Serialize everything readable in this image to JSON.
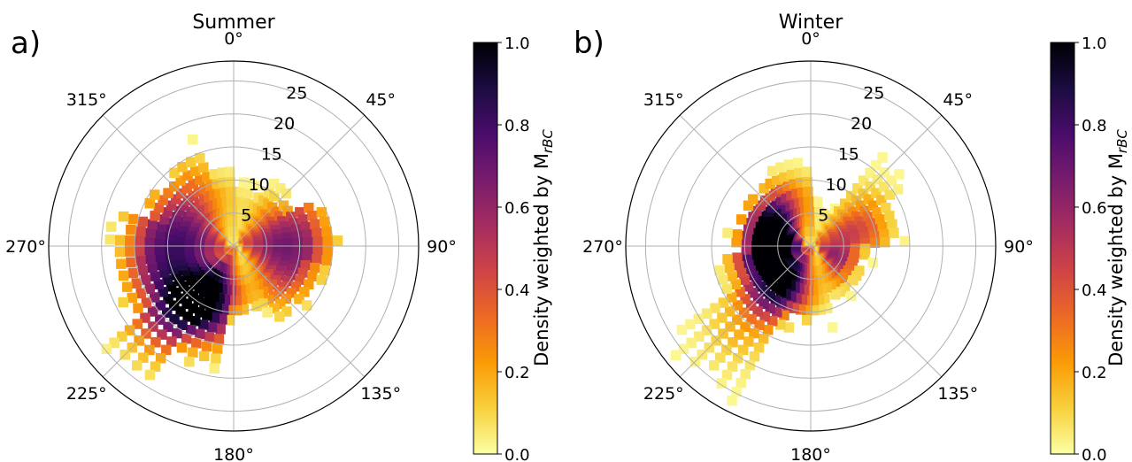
{
  "figure": {
    "panels": [
      {
        "label": "a)",
        "title": "Summer"
      },
      {
        "label": "b)",
        "title": "Winter"
      }
    ],
    "colorbar": {
      "label": "Density weighted by M",
      "label_subscript": "rBC",
      "ticks": [
        "0.0",
        "0.2",
        "0.4",
        "0.6",
        "0.8",
        "1.0"
      ],
      "colormap": "inferno_r",
      "stops": [
        "#fcffa4",
        "#f7d13d",
        "#fb9b06",
        "#ed6925",
        "#cf4446",
        "#a52c60",
        "#781c6d",
        "#4a0c6b",
        "#1b0c41",
        "#000004"
      ]
    },
    "angle_ticks": [
      "0°",
      "45°",
      "90°",
      "135°",
      "180°",
      "225°",
      "270°",
      "315°"
    ],
    "radial_ticks": [
      "5",
      "10",
      "15",
      "20",
      "25"
    ]
  },
  "chart_data": [
    {
      "type": "polar-heatmap",
      "panel": "a)",
      "title": "Summer",
      "theta_unit": "degrees (clockwise from north)",
      "r_lim": [
        0,
        28
      ],
      "r_ticks": [
        5,
        10,
        15,
        20,
        25
      ],
      "theta_ticks": [
        0,
        45,
        90,
        135,
        180,
        225,
        270,
        315
      ],
      "colorbar_label": "Density weighted by M_rBC",
      "value_range": [
        0,
        1
      ],
      "density_lobes": [
        {
          "theta_center": 210,
          "r_center": 9,
          "theta_sd": 22,
          "r_sd": 4.5,
          "peak": 1.0
        },
        {
          "theta_center": 255,
          "r_center": 10,
          "theta_sd": 35,
          "r_sd": 6,
          "peak": 0.55
        },
        {
          "theta_center": 300,
          "r_center": 7,
          "theta_sd": 35,
          "r_sd": 6,
          "peak": 0.45
        },
        {
          "theta_center": 80,
          "r_center": 8,
          "theta_sd": 28,
          "r_sd": 6,
          "peak": 0.55
        },
        {
          "theta_center": 120,
          "r_center": 8,
          "theta_sd": 25,
          "r_sd": 6,
          "peak": 0.35
        },
        {
          "theta_center": 220,
          "r_center": 17,
          "theta_sd": 12,
          "r_sd": 7,
          "peak": 0.18
        }
      ],
      "coverage": [
        {
          "theta_from": 0,
          "theta_to": 30,
          "r_max": 9
        },
        {
          "theta_from": 30,
          "theta_to": 60,
          "r_max": 10
        },
        {
          "theta_from": 60,
          "theta_to": 100,
          "r_max": 15
        },
        {
          "theta_from": 100,
          "theta_to": 150,
          "r_max": 13
        },
        {
          "theta_from": 150,
          "theta_to": 185,
          "r_max": 10
        },
        {
          "theta_from": 185,
          "theta_to": 210,
          "r_max": 18
        },
        {
          "theta_from": 210,
          "theta_to": 235,
          "r_max": 24
        },
        {
          "theta_from": 235,
          "theta_to": 265,
          "r_max": 18
        },
        {
          "theta_from": 265,
          "theta_to": 290,
          "r_max": 17
        },
        {
          "theta_from": 290,
          "theta_to": 325,
          "r_max": 14
        },
        {
          "theta_from": 325,
          "theta_to": 345,
          "r_max": 16
        },
        {
          "theta_from": 345,
          "theta_to": 360,
          "r_max": 11
        }
      ]
    },
    {
      "type": "polar-heatmap",
      "panel": "b)",
      "title": "Winter",
      "theta_unit": "degrees (clockwise from north)",
      "r_lim": [
        0,
        28
      ],
      "r_ticks": [
        5,
        10,
        15,
        20,
        25
      ],
      "theta_ticks": [
        0,
        45,
        90,
        135,
        180,
        225,
        270,
        315
      ],
      "colorbar_label": "Density weighted by M_rBC",
      "value_range": [
        0,
        1
      ],
      "density_lobes": [
        {
          "theta_center": 265,
          "r_center": 6,
          "theta_sd": 30,
          "r_sd": 3.5,
          "peak": 1.0
        },
        {
          "theta_center": 215,
          "r_center": 7,
          "theta_sd": 22,
          "r_sd": 4,
          "peak": 0.8
        },
        {
          "theta_center": 310,
          "r_center": 6,
          "theta_sd": 30,
          "r_sd": 4,
          "peak": 0.75
        },
        {
          "theta_center": 120,
          "r_center": 4,
          "theta_sd": 25,
          "r_sd": 3,
          "peak": 0.6
        },
        {
          "theta_center": 70,
          "r_center": 7,
          "theta_sd": 20,
          "r_sd": 5,
          "peak": 0.4
        },
        {
          "theta_center": 220,
          "r_center": 16,
          "theta_sd": 12,
          "r_sd": 7,
          "peak": 0.15
        }
      ],
      "coverage": [
        {
          "theta_from": 0,
          "theta_to": 35,
          "r_max": 6
        },
        {
          "theta_from": 35,
          "theta_to": 60,
          "r_max": 16
        },
        {
          "theta_from": 60,
          "theta_to": 90,
          "r_max": 13
        },
        {
          "theta_from": 90,
          "theta_to": 140,
          "r_max": 8
        },
        {
          "theta_from": 140,
          "theta_to": 165,
          "r_max": 9
        },
        {
          "theta_from": 165,
          "theta_to": 180,
          "r_max": 11
        },
        {
          "theta_from": 180,
          "theta_to": 205,
          "r_max": 12
        },
        {
          "theta_from": 205,
          "theta_to": 240,
          "r_max": 25
        },
        {
          "theta_from": 240,
          "theta_to": 265,
          "r_max": 14
        },
        {
          "theta_from": 265,
          "theta_to": 290,
          "r_max": 11
        },
        {
          "theta_from": 290,
          "theta_to": 325,
          "r_max": 11
        },
        {
          "theta_from": 325,
          "theta_to": 360,
          "r_max": 12
        }
      ]
    }
  ]
}
